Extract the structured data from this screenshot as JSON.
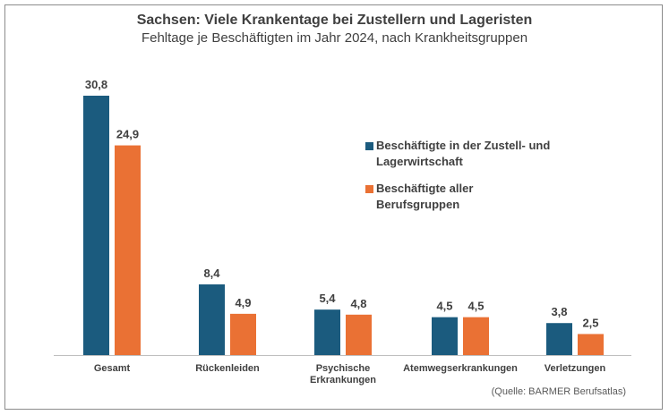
{
  "chart_data": {
    "type": "bar",
    "title": "Sachsen: Viele Krankentage bei Zustellern und Lageristen",
    "subtitle": "Fehltage je Beschäftigten im Jahr 2024, nach Krankheitsgruppen",
    "categories": [
      "Gesamt",
      "Rückenleiden",
      "Psychische Erkrankungen",
      "Atemwegserkrankungen",
      "Verletzungen"
    ],
    "category_lines": [
      [
        "Gesamt"
      ],
      [
        "Rückenleiden"
      ],
      [
        "Psychische",
        "Erkrankungen"
      ],
      [
        "Atemwegserkrankungen"
      ],
      [
        "Verletzungen"
      ]
    ],
    "series": [
      {
        "name": "Beschäftigte in der Zustell- und Lagerwirtschaft",
        "color": "#1b5b7e",
        "values": [
          30.8,
          8.4,
          5.4,
          4.5,
          3.8
        ],
        "labels": [
          "30,8",
          "8,4",
          "5,4",
          "4,5",
          "3,8"
        ]
      },
      {
        "name": "Beschäftigte aller Berufsgruppen",
        "color": "#ea7134",
        "values": [
          24.9,
          4.9,
          4.8,
          4.5,
          2.5
        ],
        "labels": [
          "24,9",
          "4,9",
          "4,8",
          "4,5",
          "2,5"
        ]
      }
    ],
    "ylim": [
      0,
      30.8
    ],
    "grid": false,
    "legend_position": "right",
    "source": "(Quelle: BARMER Berufsatlas)"
  }
}
